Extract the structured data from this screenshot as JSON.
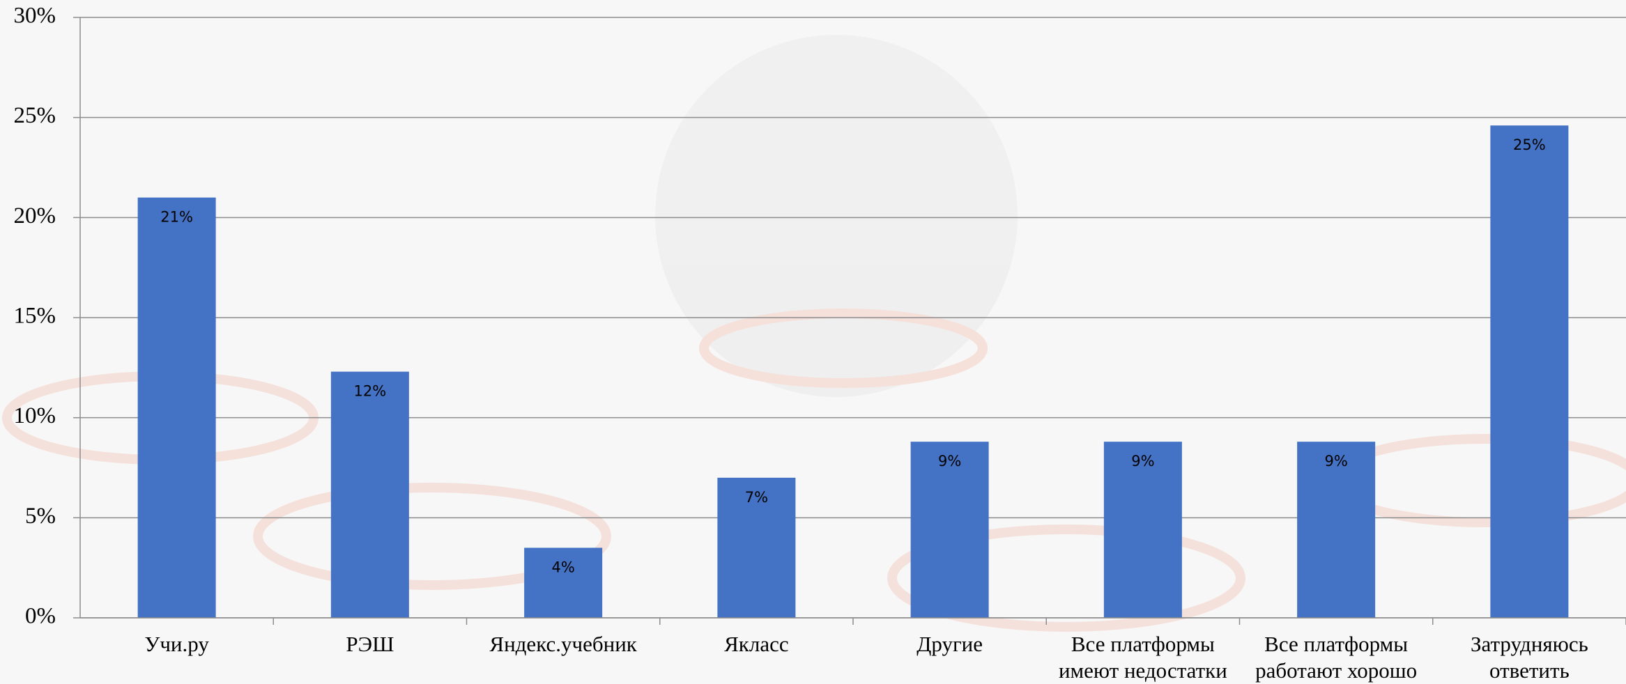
{
  "chart_data": {
    "type": "bar",
    "categories": [
      "Учи.ру",
      "РЭШ",
      "Яндекс.учебник",
      "Якласс",
      "Другие",
      "Все платформы имеют недостатки",
      "Все платформы работают хорошо",
      "Затрудняюсь ответить"
    ],
    "values": [
      21,
      12.3,
      3.5,
      7,
      8.8,
      8.8,
      8.8,
      24.6
    ],
    "value_labels": [
      "21%",
      "12%",
      "4%",
      "7%",
      "9%",
      "9%",
      "9%",
      "25%"
    ],
    "color": "#4472c4",
    "ylim": [
      0,
      30
    ],
    "yticks": [
      {
        "value": 0,
        "label": "0%"
      },
      {
        "value": 5,
        "label": "5%"
      },
      {
        "value": 10,
        "label": "10%"
      },
      {
        "value": 15,
        "label": "15%"
      },
      {
        "value": 20,
        "label": "20%"
      },
      {
        "value": 25,
        "label": "25%"
      },
      {
        "value": 30,
        "label": "30%"
      }
    ],
    "grid": true
  }
}
